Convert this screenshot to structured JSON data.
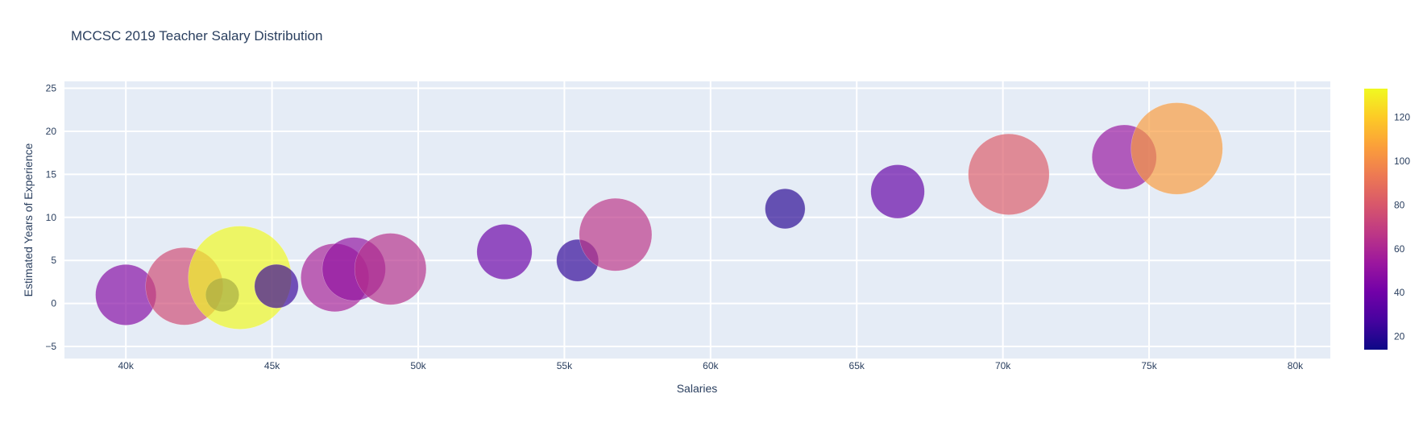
{
  "chart_data": {
    "type": "scatter",
    "subtype": "bubble",
    "title": "MCCSC 2019 Teacher Salary Distribution",
    "xlabel": "Salaries",
    "ylabel": "Estimated Years of Experience",
    "xlim": [
      37900,
      81200
    ],
    "ylim": [
      -6.4,
      25.8
    ],
    "x_ticks": [
      40000,
      45000,
      50000,
      55000,
      60000,
      65000,
      70000,
      75000,
      80000
    ],
    "x_tick_labels": [
      "40k",
      "45k",
      "50k",
      "55k",
      "60k",
      "65k",
      "70k",
      "75k",
      "80k"
    ],
    "y_ticks": [
      -5,
      0,
      5,
      10,
      15,
      20,
      25
    ],
    "y_tick_labels": [
      "−5",
      "0",
      "5",
      "10",
      "15",
      "20",
      "25"
    ],
    "grid": true,
    "colorbar": {
      "min": 14,
      "max": 133,
      "ticks": [
        20,
        40,
        60,
        80,
        100,
        120
      ],
      "colors": [
        "#0d0887",
        "#46039f",
        "#7201a8",
        "#9c179e",
        "#bd3786",
        "#d8576b",
        "#ed7953",
        "#fb9f3a",
        "#fdca26",
        "#f0f921"
      ]
    },
    "points": [
      {
        "x": 40000,
        "y": 1,
        "size": 46
      },
      {
        "x": 42000,
        "y": 2,
        "size": 75
      },
      {
        "x": 43300,
        "y": 1,
        "size": 14
      },
      {
        "x": 43900,
        "y": 3,
        "size": 133
      },
      {
        "x": 45150,
        "y": 2,
        "size": 24
      },
      {
        "x": 47150,
        "y": 3,
        "size": 58
      },
      {
        "x": 47800,
        "y": 4,
        "size": 50
      },
      {
        "x": 49050,
        "y": 4,
        "size": 64
      },
      {
        "x": 52950,
        "y": 6,
        "size": 38
      },
      {
        "x": 55450,
        "y": 5,
        "size": 22
      },
      {
        "x": 56750,
        "y": 8,
        "size": 66
      },
      {
        "x": 62550,
        "y": 11,
        "size": 20
      },
      {
        "x": 66400,
        "y": 13,
        "size": 36
      },
      {
        "x": 70200,
        "y": 15,
        "size": 82
      },
      {
        "x": 74150,
        "y": 17,
        "size": 52
      },
      {
        "x": 75950,
        "y": 18,
        "size": 105
      }
    ]
  }
}
